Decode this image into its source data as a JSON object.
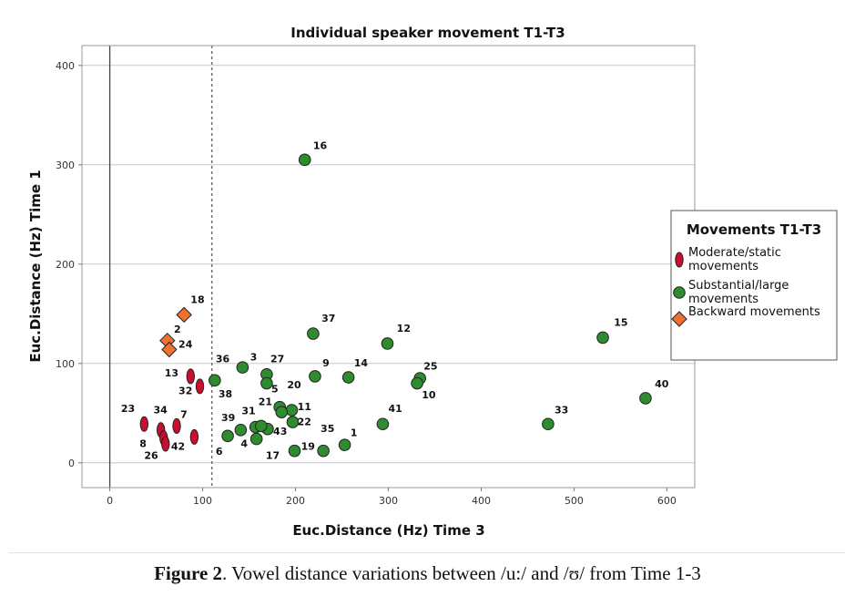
{
  "chart_data": {
    "type": "scatter",
    "title": "Individual speaker movement T1-T3",
    "xlabel": "Euc.Distance (Hz) Time 3",
    "ylabel": "Euc.Distance (Hz) Time 1",
    "xlim": [
      -30,
      630
    ],
    "ylim": [
      -25,
      420
    ],
    "xticks": [
      0,
      100,
      200,
      300,
      400,
      500,
      600
    ],
    "yticks": [
      0,
      100,
      200,
      300,
      400
    ],
    "grid": "horizontal",
    "reference_lines": [
      {
        "axis": "x",
        "value": 0,
        "style": "solid"
      },
      {
        "axis": "x",
        "value": 110,
        "style": "dashed"
      }
    ],
    "legend": {
      "title": "Movements T1-T3",
      "placement": "right",
      "entries": [
        {
          "label": "Moderate/static movements",
          "label_lines": [
            "Moderate/static",
            "movements"
          ],
          "shape": "ellipse",
          "color": "#c8102e"
        },
        {
          "label": "Substantial/large movements",
          "label_lines": [
            "Substantial/large",
            "movements"
          ],
          "shape": "circle",
          "color": "#2e8b2e"
        },
        {
          "label": "Backward movements",
          "label_lines": [
            "Backward movements"
          ],
          "shape": "diamond",
          "color": "#f07030"
        }
      ]
    },
    "series": [
      {
        "name": "Moderate/static movements",
        "shape": "ellipse",
        "color": "#c8102e",
        "points": [
          {
            "label": "13",
            "x": 87,
            "y": 87
          },
          {
            "label": "32",
            "x": 97,
            "y": 77
          },
          {
            "label": "23",
            "x": 37,
            "y": 39
          },
          {
            "label": "34",
            "x": 55,
            "y": 33
          },
          {
            "label": "7",
            "x": 72,
            "y": 37
          },
          {
            "label": "8",
            "x": 58,
            "y": 25
          },
          {
            "label": "42",
            "x": 60,
            "y": 19
          },
          {
            "label": "26",
            "x": 91,
            "y": 26
          }
        ]
      },
      {
        "name": "Substantial/large movements",
        "shape": "circle",
        "color": "#2e8b2e",
        "points": [
          {
            "label": "16",
            "x": 210,
            "y": 305
          },
          {
            "label": "37",
            "x": 219,
            "y": 130
          },
          {
            "label": "12",
            "x": 299,
            "y": 120
          },
          {
            "label": "15",
            "x": 531,
            "y": 126
          },
          {
            "label": "40",
            "x": 577,
            "y": 65
          },
          {
            "label": "33",
            "x": 472,
            "y": 39
          },
          {
            "label": "3",
            "x": 143,
            "y": 96
          },
          {
            "label": "27",
            "x": 169,
            "y": 89
          },
          {
            "label": "9",
            "x": 221,
            "y": 87
          },
          {
            "label": "14",
            "x": 257,
            "y": 86
          },
          {
            "label": "25",
            "x": 334,
            "y": 85
          },
          {
            "label": "10",
            "x": 331,
            "y": 80
          },
          {
            "label": "36",
            "x": 113,
            "y": 83
          },
          {
            "label": "5",
            "x": 169,
            "y": 80
          },
          {
            "label": "21",
            "x": 183,
            "y": 56
          },
          {
            "label": "11",
            "x": 196,
            "y": 53
          },
          {
            "label": "20",
            "x": 185,
            "y": 51
          },
          {
            "label": "22",
            "x": 197,
            "y": 41
          },
          {
            "label": "41",
            "x": 294,
            "y": 39
          },
          {
            "label": "31",
            "x": 157,
            "y": 36
          },
          {
            "label": "43",
            "x": 170,
            "y": 34
          },
          {
            "label": "39",
            "x": 141,
            "y": 33
          },
          {
            "label": "4",
            "x": 163,
            "y": 37
          },
          {
            "label": "6",
            "x": 127,
            "y": 27
          },
          {
            "label": "38",
            "x": 158,
            "y": 24
          },
          {
            "label": "1",
            "x": 253,
            "y": 18
          },
          {
            "label": "35",
            "x": 230,
            "y": 12
          },
          {
            "label": "19",
            "x": 199,
            "y": 12
          }
        ]
      },
      {
        "name": "Backward movements",
        "shape": "diamond",
        "color": "#f07030",
        "points": [
          {
            "label": "18",
            "x": 80,
            "y": 149
          },
          {
            "label": "2",
            "x": 62,
            "y": 123
          },
          {
            "label": "24",
            "x": 64,
            "y": 114
          }
        ]
      }
    ],
    "point_labels": [
      {
        "label": "16",
        "x": 219,
        "y": 316
      },
      {
        "label": "37",
        "x": 228,
        "y": 142
      },
      {
        "label": "12",
        "x": 309,
        "y": 132
      },
      {
        "label": "15",
        "x": 543,
        "y": 138
      },
      {
        "label": "40",
        "x": 587,
        "y": 76
      },
      {
        "label": "33",
        "x": 479,
        "y": 50
      },
      {
        "label": "18",
        "x": 87,
        "y": 161
      },
      {
        "label": "2",
        "x": 69,
        "y": 131
      },
      {
        "label": "24",
        "x": 74,
        "y": 116
      },
      {
        "label": "36",
        "x": 114,
        "y": 101
      },
      {
        "label": "3",
        "x": 151,
        "y": 103
      },
      {
        "label": "27",
        "x": 173,
        "y": 101
      },
      {
        "label": "9",
        "x": 229,
        "y": 97
      },
      {
        "label": "14",
        "x": 263,
        "y": 97
      },
      {
        "label": "25",
        "x": 338,
        "y": 94
      },
      {
        "label": "13",
        "x": 59,
        "y": 87
      },
      {
        "label": "32",
        "x": 74,
        "y": 69
      },
      {
        "label": "20",
        "x": 191,
        "y": 75
      },
      {
        "label": "5",
        "x": 174,
        "y": 71
      },
      {
        "label": "38",
        "x": 117,
        "y": 66
      },
      {
        "label": "10",
        "x": 336,
        "y": 65
      },
      {
        "label": "21",
        "x": 160,
        "y": 58
      },
      {
        "label": "11",
        "x": 202,
        "y": 53
      },
      {
        "label": "41",
        "x": 300,
        "y": 51
      },
      {
        "label": "23",
        "x": 12,
        "y": 51
      },
      {
        "label": "34",
        "x": 47,
        "y": 50
      },
      {
        "label": "7",
        "x": 76,
        "y": 45
      },
      {
        "label": "31",
        "x": 142,
        "y": 49
      },
      {
        "label": "39",
        "x": 120,
        "y": 42
      },
      {
        "label": "22",
        "x": 202,
        "y": 38
      },
      {
        "label": "43",
        "x": 176,
        "y": 28
      },
      {
        "label": "35",
        "x": 227,
        "y": 31
      },
      {
        "label": "1",
        "x": 259,
        "y": 27
      },
      {
        "label": "4",
        "x": 141,
        "y": 16
      },
      {
        "label": "8",
        "x": 32,
        "y": 16
      },
      {
        "label": "42",
        "x": 66,
        "y": 13
      },
      {
        "label": "19",
        "x": 206,
        "y": 13
      },
      {
        "label": "6",
        "x": 114,
        "y": 8
      },
      {
        "label": "26",
        "x": 37,
        "y": 4
      },
      {
        "label": "17",
        "x": 168,
        "y": 4
      }
    ]
  },
  "caption": {
    "prefix": "Figure 2",
    "text": ". Vowel distance variations between /u:/ and /ʊ/ from Time 1-3"
  }
}
